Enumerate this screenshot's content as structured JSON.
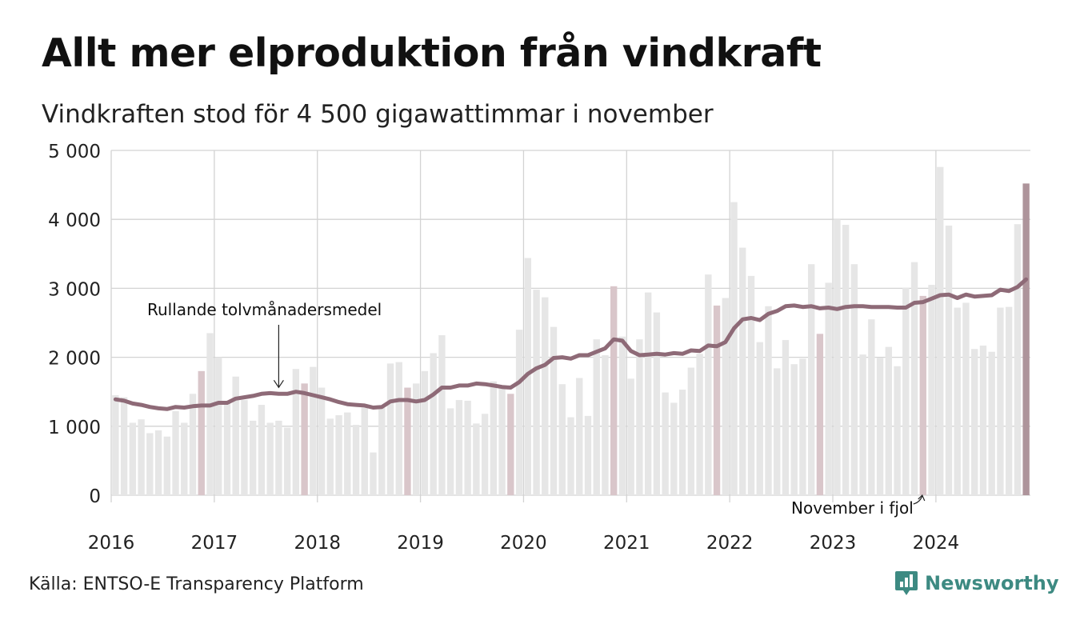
{
  "header": {
    "title": "Allt mer elproduktion från vindkraft",
    "subtitle": "Vindkraften stod för 4 500 gigawattimmar i november"
  },
  "footer": {
    "source": "Källa: ENTSO-E Transparency Platform",
    "brand": "Newsworthy",
    "brand_icon": "chart-bubble-icon"
  },
  "colors": {
    "bar": "#e6e6e6",
    "bar_november": "#d9c6ca",
    "bar_current": "#ae949b",
    "line": "#8e6a77",
    "grid": "#d3d3d3",
    "brand": "#3d8a82"
  },
  "chart_data": {
    "type": "bar",
    "start": "2016-01",
    "ylim": [
      0,
      5000
    ],
    "yticks": [
      0,
      1000,
      2000,
      3000,
      4000,
      5000
    ],
    "ytick_labels": [
      "0",
      "1 000",
      "2 000",
      "3 000",
      "4 000",
      "5 000"
    ],
    "xtick_labels": [
      "2016",
      "2017",
      "2018",
      "2019",
      "2020",
      "2021",
      "2022",
      "2023",
      "2024"
    ],
    "grid": true,
    "series": [
      {
        "type": "bar",
        "values": [
          1450,
          1420,
          1050,
          1100,
          900,
          940,
          850,
          1220,
          1050,
          1470,
          1800,
          2350,
          2000,
          1350,
          1720,
          1380,
          1080,
          1310,
          1050,
          1080,
          980,
          1830,
          1620,
          1860,
          1560,
          1110,
          1160,
          1200,
          1020,
          1270,
          620,
          1270,
          1910,
          1930,
          1560,
          1620,
          1800,
          2060,
          2320,
          1260,
          1380,
          1370,
          1040,
          1180,
          1650,
          1560,
          1470,
          2400,
          3440,
          2980,
          2870,
          2440,
          1610,
          1130,
          1700,
          1150,
          2260,
          2030,
          3030,
          2300,
          1690,
          2260,
          2940,
          2650,
          1490,
          1340,
          1530,
          1850,
          2050,
          3200,
          2750,
          2860,
          4250,
          3590,
          3180,
          2220,
          2740,
          1840,
          2250,
          1900,
          1980,
          3350,
          2340,
          3080,
          4000,
          3920,
          3350,
          2040,
          2550,
          1990,
          2150,
          1870,
          3010,
          3380,
          2890,
          3050,
          4760,
          3910,
          2720,
          2790,
          2120,
          2170,
          2080,
          2720,
          2730,
          3930,
          4520
        ]
      },
      {
        "type": "line",
        "name": "Rullande tolvmånadersmedel",
        "values": [
          1390,
          1370,
          1330,
          1310,
          1280,
          1260,
          1250,
          1280,
          1270,
          1290,
          1300,
          1300,
          1340,
          1340,
          1400,
          1420,
          1440,
          1470,
          1480,
          1470,
          1470,
          1500,
          1480,
          1450,
          1420,
          1390,
          1350,
          1320,
          1310,
          1300,
          1270,
          1280,
          1360,
          1380,
          1380,
          1360,
          1380,
          1460,
          1560,
          1560,
          1590,
          1590,
          1620,
          1610,
          1590,
          1570,
          1560,
          1640,
          1760,
          1840,
          1890,
          1990,
          2000,
          1980,
          2030,
          2030,
          2080,
          2130,
          2260,
          2240,
          2090,
          2030,
          2040,
          2050,
          2040,
          2060,
          2050,
          2100,
          2090,
          2170,
          2160,
          2220,
          2420,
          2550,
          2570,
          2540,
          2630,
          2670,
          2740,
          2750,
          2730,
          2740,
          2710,
          2720,
          2700,
          2730,
          2740,
          2740,
          2730,
          2730,
          2730,
          2720,
          2720,
          2790,
          2800,
          2850,
          2900,
          2910,
          2860,
          2910,
          2880,
          2890,
          2900,
          2980,
          2960,
          3020,
          3130
        ]
      }
    ],
    "annotations": [
      {
        "text": "Rullande tolvmånadersmedel",
        "target_month": "2017-08"
      },
      {
        "text": "November i fjol",
        "target_month": "2023-11"
      }
    ]
  }
}
